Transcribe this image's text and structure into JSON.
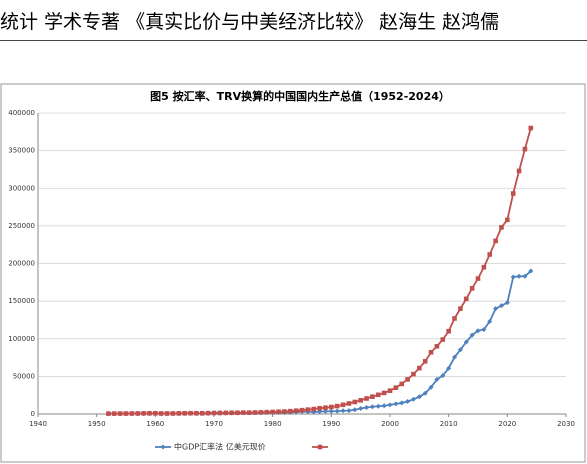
{
  "header": {
    "text": "统计  学术专著    《真实比价与中美经济比较》    赵海生  赵鸿儒"
  },
  "chart_data": {
    "type": "line",
    "title": "图5 按汇率、TRV换算的中国国内生产总值（1952-2024）",
    "x": [
      1952,
      1953,
      1954,
      1955,
      1956,
      1957,
      1958,
      1959,
      1960,
      1961,
      1962,
      1963,
      1964,
      1965,
      1966,
      1967,
      1968,
      1969,
      1970,
      1971,
      1972,
      1973,
      1974,
      1975,
      1976,
      1977,
      1978,
      1979,
      1980,
      1981,
      1982,
      1983,
      1984,
      1985,
      1986,
      1987,
      1988,
      1989,
      1990,
      1991,
      1992,
      1993,
      1994,
      1995,
      1996,
      1997,
      1998,
      1999,
      2000,
      2001,
      2002,
      2003,
      2004,
      2005,
      2006,
      2007,
      2008,
      2009,
      2010,
      2011,
      2012,
      2013,
      2014,
      2015,
      2016,
      2017,
      2018,
      2019,
      2020,
      2021,
      2022,
      2023,
      2024
    ],
    "series": [
      {
        "name": "中GDP汇率法 亿美元现价",
        "color": "#4f81bd",
        "marker": "diamond",
        "values": [
          300,
          350,
          380,
          400,
          450,
          480,
          550,
          600,
          600,
          500,
          470,
          500,
          600,
          700,
          760,
          720,
          700,
          790,
          920,
          1000,
          1140,
          1390,
          1440,
          1630,
          1540,
          1750,
          1500,
          1780,
          1910,
          1960,
          2050,
          2300,
          2600,
          3100,
          3000,
          2700,
          3120,
          3470,
          3610,
          3830,
          4270,
          4450,
          5640,
          7340,
          8630,
          9620,
          10290,
          10940,
          12110,
          13390,
          14710,
          16600,
          19550,
          22860,
          27520,
          35500,
          45940,
          51020,
          60870,
          75510,
          85320,
          95700,
          104750,
          110620,
          112330,
          123100,
          140000,
          144000,
          148000,
          182000,
          183000,
          183000,
          190000
        ]
      },
      {
        "color": "#c0504d",
        "marker": "square",
        "values": [
          500,
          550,
          580,
          620,
          700,
          740,
          870,
          900,
          900,
          700,
          680,
          720,
          830,
          950,
          1050,
          1000,
          980,
          1140,
          1350,
          1450,
          1500,
          1620,
          1670,
          1800,
          1780,
          1950,
          2200,
          2450,
          2700,
          3000,
          3300,
          3800,
          4400,
          5100,
          5800,
          6600,
          7600,
          8400,
          9300,
          10500,
          12200,
          14000,
          16000,
          18200,
          20600,
          23000,
          25500,
          28000,
          31000,
          35000,
          40000,
          46000,
          53000,
          61000,
          70000,
          82000,
          90000,
          99000,
          110000,
          127000,
          140000,
          153000,
          167000,
          180000,
          195000,
          212000,
          230000,
          248000,
          258000,
          293000,
          323000,
          352000,
          380000
        ]
      }
    ],
    "xlim": [
      1940,
      2030
    ],
    "xticks": [
      1940,
      1950,
      1960,
      1970,
      1980,
      1990,
      2000,
      2010,
      2020,
      2030
    ],
    "ylim": [
      0,
      400000
    ],
    "yticks": [
      0,
      50000,
      100000,
      150000,
      200000,
      250000,
      300000,
      350000,
      400000
    ],
    "grid": true,
    "legend": "bottom"
  }
}
